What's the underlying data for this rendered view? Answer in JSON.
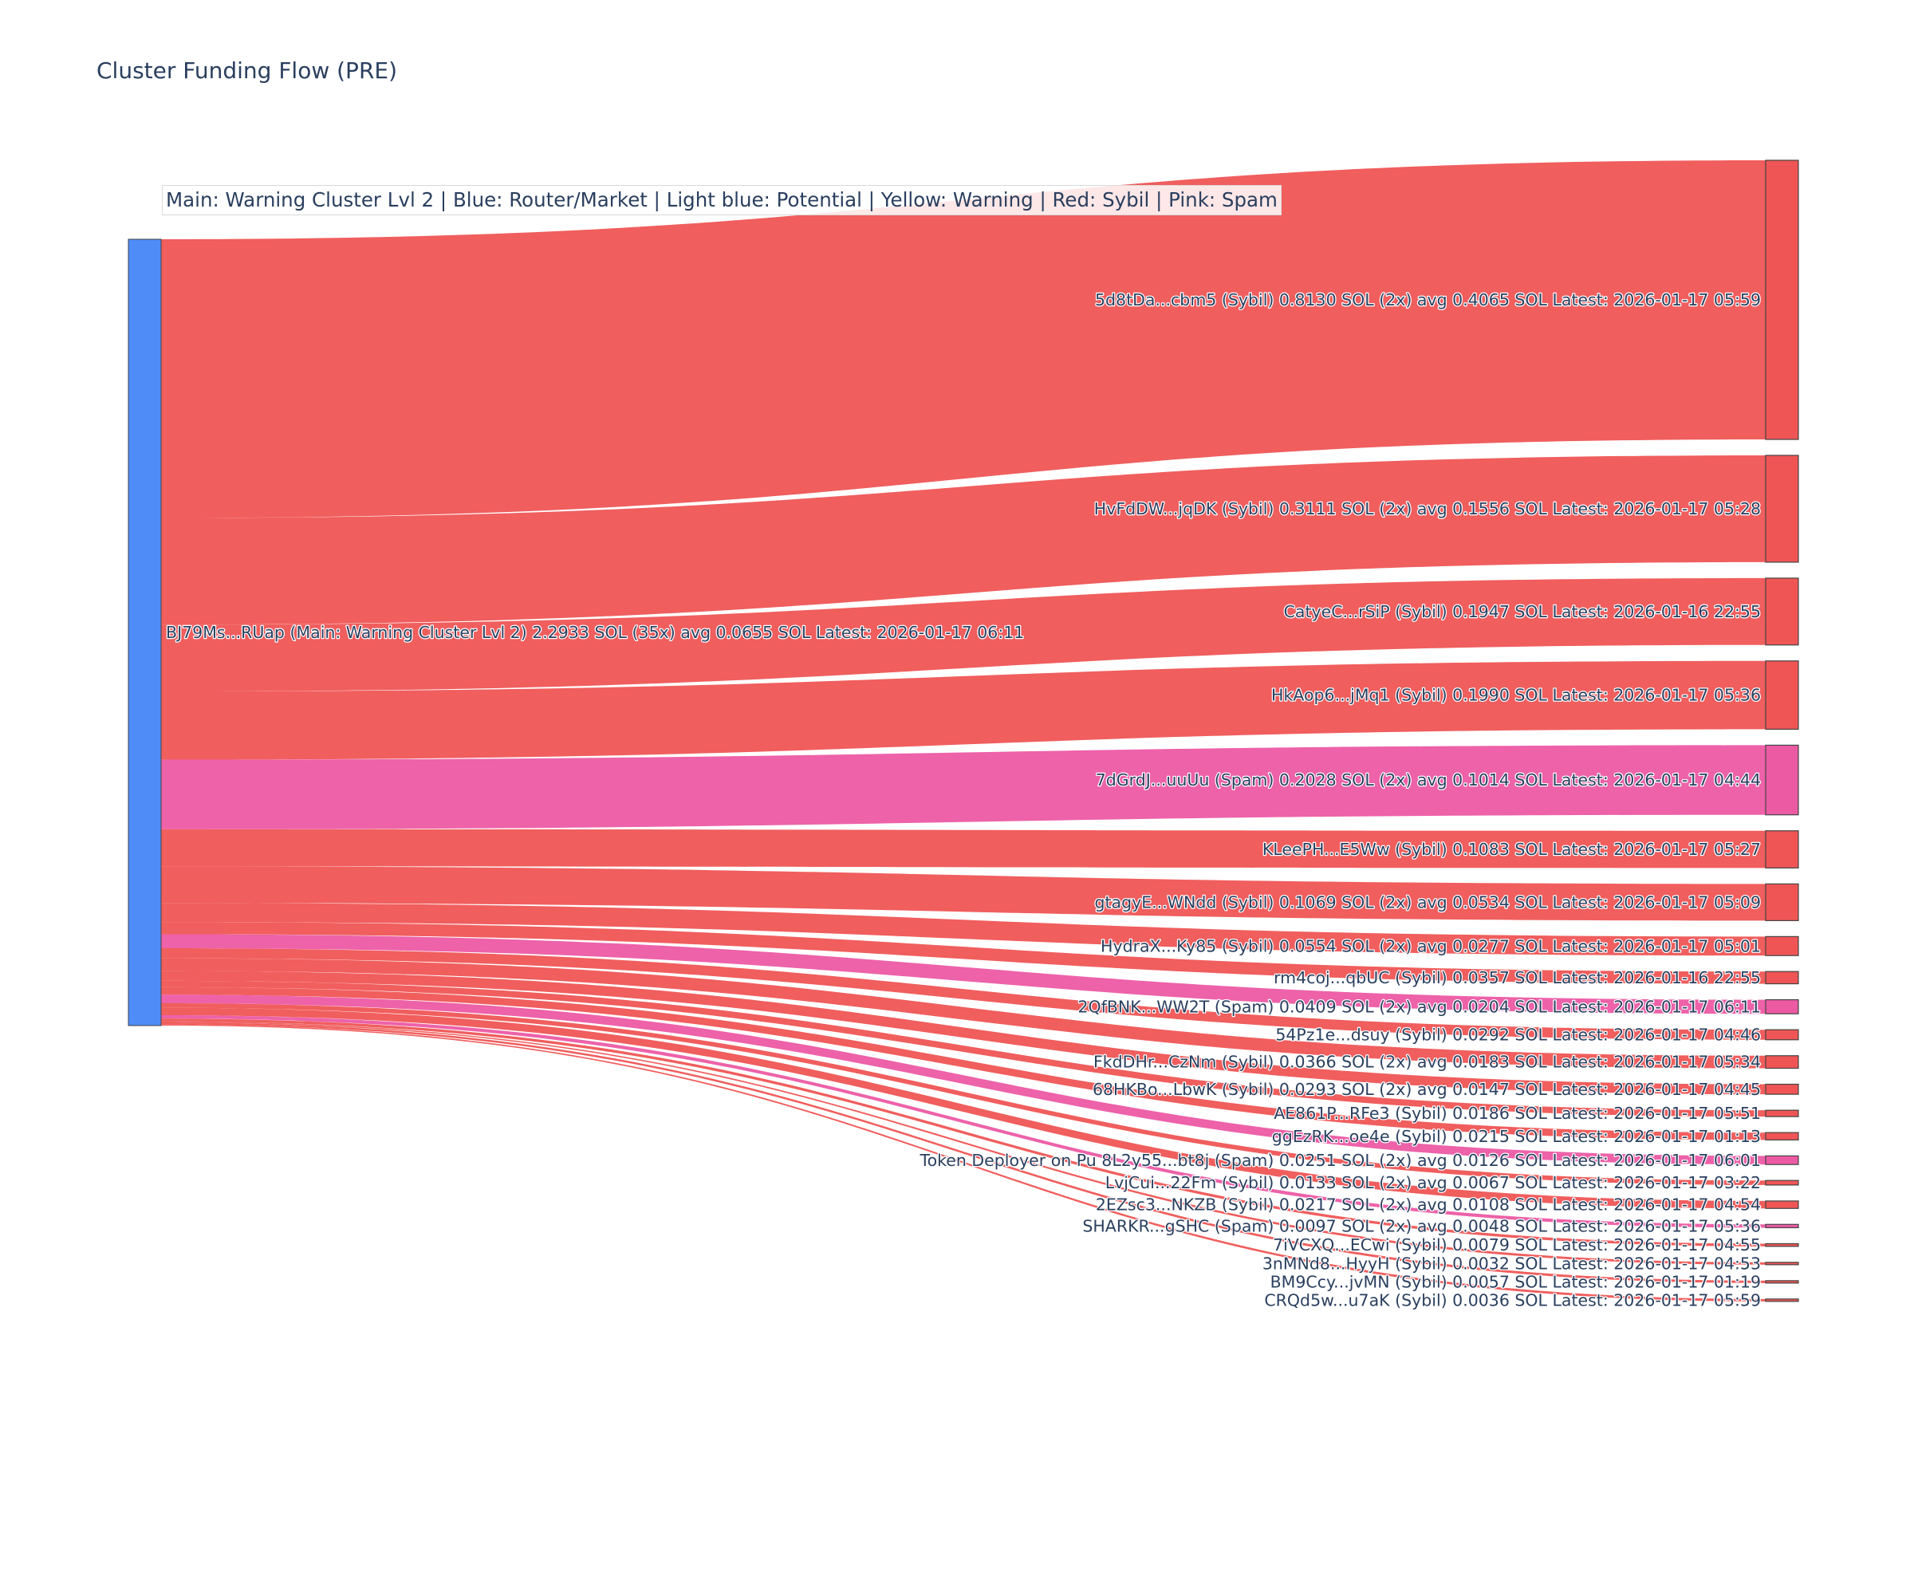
{
  "chart_data": {
    "type": "sankey",
    "title": "Cluster Funding Flow (PRE)",
    "annotation": "Main: Warning Cluster Lvl 2  |  Blue: Router/Market | Light blue: Potential | Yellow: Warning | Red: Sybil | Pink: Spam",
    "colors": {
      "router": "#4f8cf7",
      "sybil": "#ef5555",
      "spam": "#ec5aa4",
      "node_border": "#444444"
    },
    "source": {
      "label": "BJ79Ms...RUap (Main: Warning Cluster Lvl 2) 2.2933 SOL (35x) avg 0.0655 SOL Latest: 2026-01-17 06:11",
      "value": 2.2933,
      "category": "router"
    },
    "targets": [
      {
        "label": "5d8tDa...cbm5 (Sybil) 0.8130 SOL (2x) avg 0.4065 SOL Latest: 2026-01-17 05:59",
        "value": 0.813,
        "category": "sybil"
      },
      {
        "label": "HvFdDW...jqDK (Sybil) 0.3111 SOL (2x) avg 0.1556 SOL Latest: 2026-01-17 05:28",
        "value": 0.3111,
        "category": "sybil"
      },
      {
        "label": "CatyeC...rSiP (Sybil) 0.1947 SOL Latest: 2026-01-16 22:55",
        "value": 0.1947,
        "category": "sybil"
      },
      {
        "label": "HkAop6...jMq1 (Sybil) 0.1990 SOL Latest: 2026-01-17 05:36",
        "value": 0.199,
        "category": "sybil"
      },
      {
        "label": "7dGrdJ...uuUu (Spam) 0.2028 SOL (2x) avg 0.1014 SOL Latest: 2026-01-17 04:44",
        "value": 0.2028,
        "category": "spam"
      },
      {
        "label": "KLeePH...E5Ww (Sybil) 0.1083 SOL Latest: 2026-01-17 05:27",
        "value": 0.1083,
        "category": "sybil"
      },
      {
        "label": "gtagyE...WNdd (Sybil) 0.1069 SOL (2x) avg 0.0534 SOL Latest: 2026-01-17 05:09",
        "value": 0.1069,
        "category": "sybil"
      },
      {
        "label": "HydraX...Ky85 (Sybil) 0.0554 SOL (2x) avg 0.0277 SOL Latest: 2026-01-17 05:01",
        "value": 0.0554,
        "category": "sybil"
      },
      {
        "label": "rm4coj...qbUC (Sybil) 0.0357 SOL Latest: 2026-01-16 22:55",
        "value": 0.0357,
        "category": "sybil"
      },
      {
        "label": "2QfBNK...WW2T (Spam) 0.0409 SOL (2x) avg 0.0204 SOL Latest: 2026-01-17 06:11",
        "value": 0.0409,
        "category": "spam"
      },
      {
        "label": "54Pz1e...dsuy (Sybil) 0.0292 SOL Latest: 2026-01-17 04:46",
        "value": 0.0292,
        "category": "sybil"
      },
      {
        "label": "FkdDHr...CzNm (Sybil) 0.0366 SOL (2x) avg 0.0183 SOL Latest: 2026-01-17 05:34",
        "value": 0.0366,
        "category": "sybil"
      },
      {
        "label": "68HKBo...LbwK (Sybil) 0.0293 SOL (2x) avg 0.0147 SOL Latest: 2026-01-17 04:45",
        "value": 0.0293,
        "category": "sybil"
      },
      {
        "label": "AE861P...RFe3 (Sybil) 0.0186 SOL Latest: 2026-01-17 05:51",
        "value": 0.0186,
        "category": "sybil"
      },
      {
        "label": "ggEzRK...oe4e (Sybil) 0.0215 SOL Latest: 2026-01-17 01:13",
        "value": 0.0215,
        "category": "sybil"
      },
      {
        "label": "Token Deployer on Pu 8L2y55...bt8j (Spam) 0.0251 SOL (2x) avg 0.0126 SOL Latest: 2026-01-17 06:01",
        "value": 0.0251,
        "category": "spam"
      },
      {
        "label": "LvjCui...22Fm (Sybil) 0.0133 SOL (2x) avg 0.0067 SOL Latest: 2026-01-17 03:22",
        "value": 0.0133,
        "category": "sybil"
      },
      {
        "label": "2EZsc3...NKZB (Sybil) 0.0217 SOL (2x) avg 0.0108 SOL Latest: 2026-01-17 04:54",
        "value": 0.0217,
        "category": "sybil"
      },
      {
        "label": "SHARKR...gSHC (Spam) 0.0097 SOL (2x) avg 0.0048 SOL Latest: 2026-01-17 05:36",
        "value": 0.0097,
        "category": "spam"
      },
      {
        "label": "7iVCXQ...ECwi (Sybil) 0.0079 SOL Latest: 2026-01-17 04:55",
        "value": 0.0079,
        "category": "sybil"
      },
      {
        "label": "3nMNd8...HyyH (Sybil) 0.0032 SOL Latest: 2026-01-17 04:53",
        "value": 0.0032,
        "category": "sybil"
      },
      {
        "label": "BM9Ccy...jvMN (Sybil) 0.0057 SOL Latest: 2026-01-17 01:19",
        "value": 0.0057,
        "category": "sybil"
      },
      {
        "label": "CRQd5w...u7aK (Sybil) 0.0036 SOL Latest: 2026-01-17 05:59",
        "value": 0.0036,
        "category": "sybil"
      }
    ]
  }
}
